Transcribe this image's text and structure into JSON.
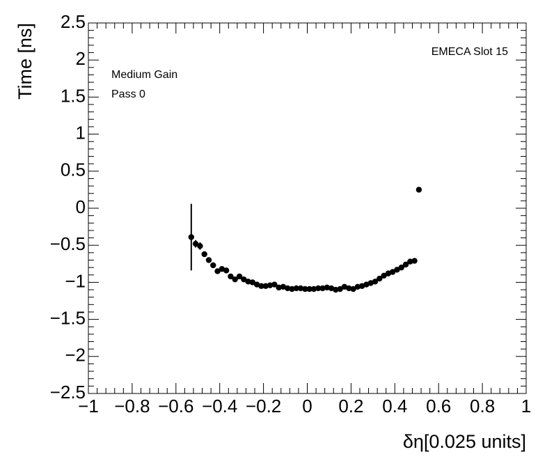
{
  "chart_data": {
    "type": "scatter",
    "x_label": "δη[0.025 units]",
    "y_label": "Time [ns]",
    "annotations": [
      "EMECA Slot 15",
      "Medium Gain",
      "Pass 0"
    ],
    "color": "#000000",
    "x": [
      -0.53,
      -0.51,
      -0.49,
      -0.47,
      -0.45,
      -0.43,
      -0.41,
      -0.39,
      -0.37,
      -0.35,
      -0.33,
      -0.31,
      -0.29,
      -0.27,
      -0.25,
      -0.23,
      -0.21,
      -0.19,
      -0.17,
      -0.15,
      -0.13,
      -0.11,
      -0.09,
      -0.07,
      -0.05,
      -0.03,
      -0.01,
      0.01,
      0.03,
      0.05,
      0.07,
      0.09,
      0.11,
      0.13,
      0.15,
      0.17,
      0.19,
      0.21,
      0.23,
      0.25,
      0.27,
      0.29,
      0.31,
      0.33,
      0.35,
      0.37,
      0.39,
      0.41,
      0.43,
      0.45,
      0.47,
      0.49,
      0.51
    ],
    "values": [
      -0.39,
      -0.48,
      -0.51,
      -0.62,
      -0.7,
      -0.77,
      -0.85,
      -0.82,
      -0.84,
      -0.92,
      -0.96,
      -0.92,
      -0.96,
      -0.99,
      -1.0,
      -1.03,
      -1.05,
      -1.05,
      -1.04,
      -1.03,
      -1.07,
      -1.06,
      -1.08,
      -1.09,
      -1.08,
      -1.08,
      -1.09,
      -1.09,
      -1.09,
      -1.08,
      -1.08,
      -1.07,
      -1.08,
      -1.1,
      -1.09,
      -1.06,
      -1.08,
      -1.09,
      -1.06,
      -1.05,
      -1.03,
      -1.01,
      -0.99,
      -0.95,
      -0.91,
      -0.88,
      -0.86,
      -0.83,
      -0.8,
      -0.76,
      -0.72,
      -0.71,
      0.25
    ],
    "errors": [
      0.45,
      0.05,
      0.05,
      0.03,
      0.03,
      0.02,
      0.02,
      0.02,
      0.02,
      0.02,
      0.02,
      0.02,
      0.02,
      0.02,
      0.02,
      0.02,
      0.02,
      0.02,
      0.02,
      0.02,
      0.02,
      0.02,
      0.02,
      0.02,
      0.02,
      0.02,
      0.02,
      0.02,
      0.02,
      0.02,
      0.02,
      0.02,
      0.02,
      0.02,
      0.02,
      0.02,
      0.02,
      0.02,
      0.02,
      0.02,
      0.02,
      0.02,
      0.02,
      0.02,
      0.02,
      0.02,
      0.02,
      0.02,
      0.02,
      0.02,
      0.02,
      0.02,
      0.02
    ],
    "xlim": [
      -1,
      1
    ],
    "xticks": [
      {
        "value": -1,
        "label": "−1"
      },
      {
        "value": -0.8,
        "label": "−0.8"
      },
      {
        "value": -0.6,
        "label": "−0.6"
      },
      {
        "value": -0.4,
        "label": "−0.4"
      },
      {
        "value": -0.2,
        "label": "−0.2"
      },
      0,
      0.2,
      0.4,
      0.6,
      0.8,
      1
    ],
    "ylim": [
      -2.5,
      2.5
    ],
    "yticks": [
      {
        "value": -2.5,
        "label": "−2.5"
      },
      {
        "value": -2,
        "label": "−2"
      },
      {
        "value": -1.5,
        "label": "−1.5"
      },
      {
        "value": -1,
        "label": "−1"
      },
      {
        "value": -0.5,
        "label": "−0.5"
      },
      0,
      0.5,
      1,
      1.5,
      2,
      2.5
    ],
    "minor_divisions": 5,
    "grid": false
  }
}
